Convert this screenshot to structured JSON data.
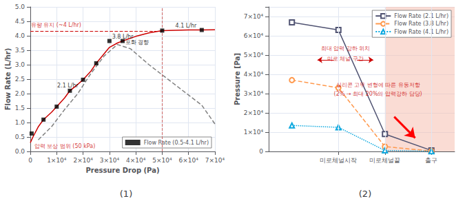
{
  "chart_data": [
    {
      "type": "line",
      "title": "(1)",
      "xlabel": "Pressure Drop (Pa)",
      "ylabel": "Flow Rate (L/hr)",
      "xlim": [
        0,
        70000
      ],
      "ylim": [
        0,
        5
      ],
      "xticks": [
        0,
        {
          "value": 10000,
          "label": "1×10⁴"
        },
        {
          "value": 20000,
          "label": "2×10⁴"
        },
        {
          "value": 30000,
          "label": "3×10⁴"
        },
        {
          "value": 40000,
          "label": "4×10⁴"
        },
        {
          "value": 50000,
          "label": "5×10⁴"
        },
        {
          "value": 60000,
          "label": "6×10⁴"
        },
        {
          "value": 70000,
          "label": "7×10⁴"
        }
      ],
      "yticks": [
        {
          "value": 0,
          "label": "0.0"
        },
        0.5,
        {
          "value": 1.0,
          "label": "1.0"
        },
        1.5,
        {
          "value": 2.0,
          "label": "2.0"
        },
        2.5,
        {
          "value": 3.0,
          "label": "3.0"
        },
        3.5,
        {
          "value": 4.0,
          "label": "4.0"
        },
        4.5,
        {
          "value": 5.0,
          "label": "5.0"
        }
      ],
      "grid": true,
      "legend": "lower right",
      "series": [
        {
          "type": "line",
          "x": [
            3000,
            8000,
            13000,
            18000,
            23000,
            28000,
            33000,
            38000,
            45000,
            55000,
            65000,
            70000
          ],
          "values": [
            0.4,
            0.85,
            1.45,
            2.0,
            2.7,
            3.3,
            3.7,
            3.55,
            3.0,
            2.3,
            1.6,
            0.95
          ],
          "color": "gray",
          "line_style": "dashed"
        },
        {
          "type": "line",
          "x": [
            0,
            1000,
            3000,
            5000,
            8000,
            10000,
            13000,
            15000,
            18000,
            20000,
            23000,
            25000,
            28000,
            30000,
            33000,
            35000,
            40000,
            45000,
            50000,
            55000,
            60000,
            65000,
            70000
          ],
          "values": [
            0.3,
            0.5,
            0.85,
            1.1,
            1.35,
            1.55,
            1.85,
            2.1,
            2.32,
            2.48,
            2.78,
            3.05,
            3.38,
            3.6,
            3.75,
            3.82,
            3.98,
            4.1,
            4.18,
            4.19,
            4.2,
            4.2,
            4.21
          ],
          "color": "#cc0000",
          "line_style": "solid"
        },
        {
          "type": "scatter",
          "name": "Flow Rate (0.5-4.1 L/hr)",
          "x": [
            500,
            5000,
            10000,
            15000,
            20000,
            25000,
            30000,
            35000,
            50000,
            65000
          ],
          "values": [
            0.62,
            1.1,
            1.55,
            2.1,
            2.48,
            3.05,
            3.82,
            3.82,
            4.18,
            4.2
          ],
          "color": "black",
          "marker": "square"
        }
      ],
      "hlines": [
        {
          "y": 4.15,
          "xmin": 0,
          "xmax": 50000,
          "color": "#cc0000"
        }
      ],
      "vlines": [
        {
          "x": 50000,
          "color": "#cc6666"
        }
      ],
      "annotations": [
        {
          "text": "유량 유지 (~4 L/hr)",
          "x": 200,
          "y": 4.28,
          "color": "#cc0000"
        },
        {
          "text": "포화 경향",
          "x": 36000,
          "y": 3.67,
          "color": "black"
        },
        {
          "text": "압력 보상 범위 (50 kPa)",
          "x": 1500,
          "y": 0.08,
          "color": "#cc0000"
        },
        {
          "text": "2.1 L/hr",
          "x": 10200,
          "y": 2.18,
          "color": "black"
        },
        {
          "text": "3.8 L/hr",
          "x": 31000,
          "y": 3.88,
          "color": "black"
        },
        {
          "text": "4.1 L/hr",
          "x": 55000,
          "y": 4.26,
          "color": "black"
        }
      ]
    },
    {
      "type": "line",
      "title": "(2)",
      "ylabel": "Pressure [Pa]",
      "x": [
        0,
        1,
        2,
        3
      ],
      "xlim": [
        -0.5,
        3.5
      ],
      "ylim": [
        0,
        75000
      ],
      "xticks": [
        {
          "value": 1,
          "label": "미로체널시작"
        },
        {
          "value": 2,
          "label": "미로체널끝"
        },
        {
          "value": 3,
          "label": "출구"
        }
      ],
      "yticks": [
        0,
        {
          "value": 10000,
          "label": "1×10⁴"
        },
        {
          "value": 20000,
          "label": "2×10⁴"
        },
        {
          "value": 30000,
          "label": "3×10⁴"
        },
        {
          "value": 40000,
          "label": "4×10⁴"
        },
        {
          "value": 50000,
          "label": "5×10⁴"
        },
        {
          "value": 60000,
          "label": "6×10⁴"
        },
        {
          "value": 70000,
          "label": "7×10⁴"
        }
      ],
      "grid": true,
      "legend": "upper right",
      "series": [
        {
          "name": "Flow Rate (2.1 L/hr)",
          "values": [
            67000,
            63000,
            9000,
            500
          ],
          "marker": "square",
          "line_style": "solid"
        },
        {
          "name": "Flow Rate (3.8 L/hr)",
          "values": [
            37000,
            33000,
            2500,
            200
          ],
          "marker": "circle",
          "line_style": "dashed"
        },
        {
          "name": "Flow Rate (4.1 L/hr)",
          "values": [
            13500,
            12500,
            500,
            100
          ],
          "marker": "triangle",
          "line_style": "dotted"
        }
      ],
      "spans": [
        {
          "x": [
            2,
            3.5
          ],
          "color": "#f5c0b0"
        }
      ],
      "annotations": [
        {
          "text": "최대 압력 강하 위치",
          "x": 1.15,
          "y": 52000,
          "color": "#cc0000"
        },
        {
          "text": "미로 체널 구간",
          "x": 1.15,
          "y": 46500,
          "color": "#cc0000"
        },
        {
          "text": "실리콘 고무 변형에 따른 유동저항",
          "x": 1.85,
          "y": 33000,
          "color": "#cc0000"
        },
        {
          "text": "(2% → 최대 20%의 압력강하 담당)",
          "x": 1.85,
          "y": 28500,
          "color": "#cc0000"
        }
      ],
      "arrows": [
        {
          "from": [
            0.9,
            47500
          ],
          "to": [
            0.55,
            47500
          ],
          "color": "#cc0000"
        },
        {
          "from": [
            1.4,
            47500
          ],
          "to": [
            1.75,
            47500
          ],
          "color": "#cc0000"
        },
        {
          "from": [
            2.2,
            18000
          ],
          "to": [
            2.65,
            7000
          ],
          "color": "red"
        }
      ]
    }
  ]
}
